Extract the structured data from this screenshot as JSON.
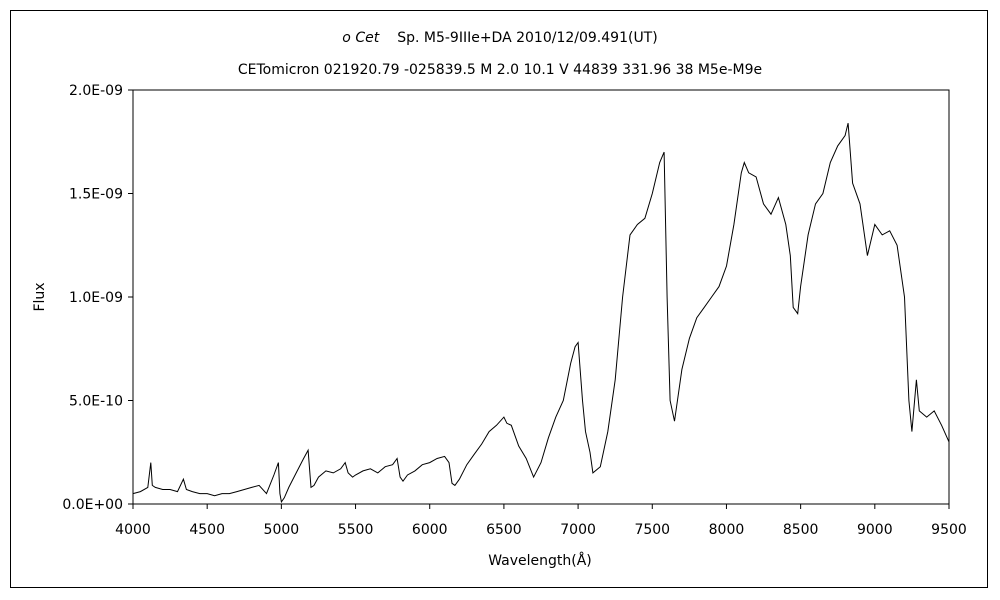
{
  "chart_data": {
    "type": "line",
    "title_line1_star": "o Cet",
    "title_line1_rest": "Sp. M5-9IIIe+DA   2010/12/09.491(UT)",
    "title_line2": "CETomicron 021920.79 -025839.5 M 2.0 10.1 V 44839 331.96 38 M5e-M9e",
    "xlabel": "Wavelength(Å)",
    "ylabel": "Flux",
    "xlim": [
      4000,
      9500
    ],
    "ylim": [
      0,
      2e-09
    ],
    "xticks": [
      4000,
      4500,
      5000,
      5500,
      6000,
      6500,
      7000,
      7500,
      8000,
      8500,
      9000,
      9500
    ],
    "xtick_labels": [
      "4000",
      "4500",
      "5000",
      "5500",
      "6000",
      "6500",
      "7000",
      "7500",
      "8000",
      "8500",
      "9000",
      "9500"
    ],
    "yticks": [
      0,
      5e-10,
      1e-09,
      1.5e-09,
      2e-09
    ],
    "ytick_labels": [
      "0.0E+00",
      "5.0E-10",
      "1.0E-09",
      "1.5E-09",
      "2.0E-09"
    ],
    "grid": false,
    "legend": "none",
    "line_color": "#000000",
    "series": [
      {
        "x": [
          4000,
          4050,
          4100,
          4120,
          4130,
          4150,
          4200,
          4250,
          4300,
          4340,
          4360,
          4400,
          4450,
          4500,
          4550,
          4600,
          4650,
          4700,
          4750,
          4800,
          4850,
          4900,
          4950,
          4980,
          4990,
          5000,
          5020,
          5050,
          5100,
          5150,
          5180,
          5200,
          5220,
          5250,
          5300,
          5350,
          5400,
          5430,
          5450,
          5480,
          5500,
          5550,
          5600,
          5650,
          5700,
          5750,
          5780,
          5800,
          5820,
          5850,
          5900,
          5950,
          6000,
          6050,
          6100,
          6130,
          6150,
          6170,
          6200,
          6250,
          6300,
          6350,
          6400,
          6450,
          6500,
          6520,
          6550,
          6600,
          6650,
          6700,
          6750,
          6800,
          6850,
          6900,
          6950,
          6980,
          7000,
          7030,
          7050,
          7080,
          7100,
          7150,
          7200,
          7250,
          7300,
          7350,
          7400,
          7450,
          7500,
          7550,
          7580,
          7600,
          7620,
          7650,
          7700,
          7750,
          7800,
          7850,
          7900,
          7950,
          8000,
          8050,
          8100,
          8120,
          8150,
          8200,
          8250,
          8300,
          8350,
          8400,
          8430,
          8450,
          8480,
          8500,
          8550,
          8600,
          8650,
          8700,
          8750,
          8800,
          8820,
          8850,
          8900,
          8950,
          9000,
          9050,
          9100,
          9150,
          9200,
          9230,
          9250,
          9280,
          9300,
          9350,
          9400,
          9450,
          9500
        ],
        "y": [
          5e-11,
          6e-11,
          8e-11,
          2e-10,
          9e-11,
          8e-11,
          7e-11,
          7e-11,
          6e-11,
          1.2e-10,
          7e-11,
          6e-11,
          5e-11,
          5e-11,
          4e-11,
          5e-11,
          5e-11,
          6e-11,
          7e-11,
          8e-11,
          9e-11,
          5e-11,
          1.4e-10,
          2e-10,
          5e-11,
          1e-11,
          3e-11,
          8e-11,
          1.5e-10,
          2.2e-10,
          2.6e-10,
          8e-11,
          9e-11,
          1.3e-10,
          1.6e-10,
          1.5e-10,
          1.7e-10,
          2e-10,
          1.5e-10,
          1.3e-10,
          1.4e-10,
          1.6e-10,
          1.7e-10,
          1.5e-10,
          1.8e-10,
          1.9e-10,
          2.2e-10,
          1.3e-10,
          1.1e-10,
          1.4e-10,
          1.6e-10,
          1.9e-10,
          2e-10,
          2.2e-10,
          2.3e-10,
          2e-10,
          1e-10,
          9e-11,
          1.2e-10,
          1.9e-10,
          2.4e-10,
          2.9e-10,
          3.5e-10,
          3.8e-10,
          4.2e-10,
          3.9e-10,
          3.8e-10,
          2.8e-10,
          2.2e-10,
          1.3e-10,
          2e-10,
          3.2e-10,
          4.2e-10,
          5e-10,
          6.8e-10,
          7.6e-10,
          7.8e-10,
          5e-10,
          3.5e-10,
          2.5e-10,
          1.5e-10,
          1.8e-10,
          3.5e-10,
          6e-10,
          1e-09,
          1.3e-09,
          1.35e-09,
          1.38e-09,
          1.5e-09,
          1.65e-09,
          1.7e-09,
          1e-09,
          5e-10,
          4e-10,
          6.5e-10,
          8e-10,
          9e-10,
          9.5e-10,
          1e-09,
          1.05e-09,
          1.15e-09,
          1.35e-09,
          1.6e-09,
          1.65e-09,
          1.6e-09,
          1.58e-09,
          1.45e-09,
          1.4e-09,
          1.48e-09,
          1.35e-09,
          1.2e-09,
          9.5e-10,
          9.2e-10,
          1.05e-09,
          1.3e-09,
          1.45e-09,
          1.5e-09,
          1.65e-09,
          1.73e-09,
          1.78e-09,
          1.84e-09,
          1.55e-09,
          1.45e-09,
          1.2e-09,
          1.35e-09,
          1.3e-09,
          1.32e-09,
          1.25e-09,
          1e-09,
          5e-10,
          3.5e-10,
          6e-10,
          4.5e-10,
          4.2e-10,
          4.5e-10,
          3.8e-10,
          3e-10
        ]
      }
    ]
  }
}
